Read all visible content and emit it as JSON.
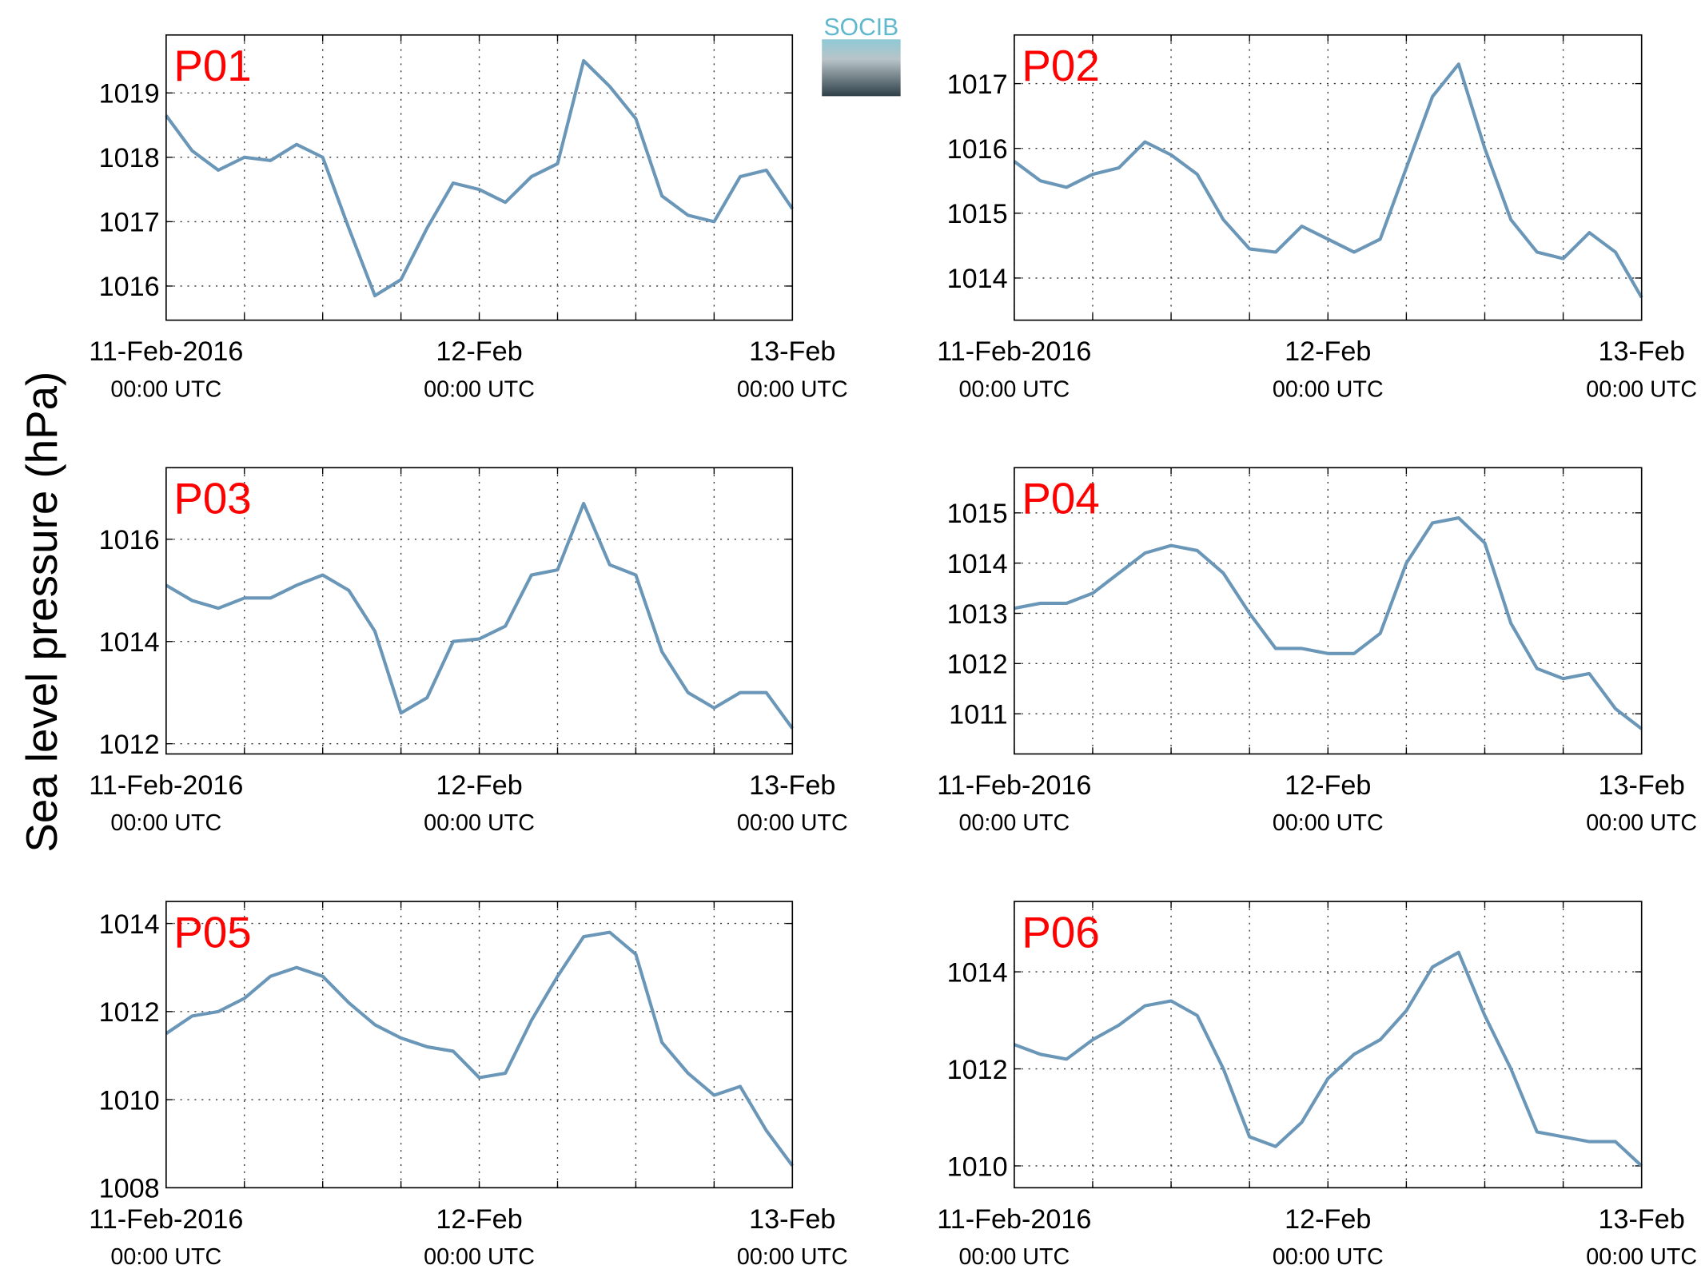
{
  "ylabel": "Sea level pressure (hPa)",
  "logo": "SOCIB",
  "chart_data": [
    {
      "type": "line",
      "title": "P01",
      "color": "#6a96b8",
      "grid": true,
      "x": [
        0,
        2,
        4,
        6,
        8,
        10,
        12,
        14,
        16,
        18,
        20,
        22,
        24,
        26,
        28,
        30,
        32,
        34,
        36,
        38,
        40,
        42,
        44,
        46,
        48
      ],
      "values": [
        1018.65,
        1018.1,
        1017.8,
        1018.0,
        1017.95,
        1018.2,
        1018.0,
        1016.9,
        1015.85,
        1016.1,
        1016.9,
        1017.6,
        1017.5,
        1017.3,
        1017.7,
        1017.9,
        1019.5,
        1019.1,
        1018.6,
        1017.4,
        1017.1,
        1017.0,
        1017.7,
        1017.8,
        1017.2
      ],
      "xlim": [
        0,
        48
      ],
      "xticks": [
        {
          "value": 0,
          "label": "11-Feb-2016"
        },
        {
          "value": 24,
          "label": "12-Feb"
        },
        {
          "value": 48,
          "label": "13-Feb"
        }
      ],
      "xtick_sublabel": "00:00 UTC",
      "xminor": [
        6,
        12,
        18,
        30,
        36,
        42
      ],
      "ylim": [
        1015.47,
        1019.9
      ],
      "yticks": [
        1016,
        1017,
        1018,
        1019
      ]
    },
    {
      "type": "line",
      "title": "P02",
      "color": "#6a96b8",
      "grid": true,
      "x": [
        0,
        2,
        4,
        6,
        8,
        10,
        12,
        14,
        16,
        18,
        20,
        22,
        24,
        26,
        28,
        30,
        32,
        34,
        36,
        38,
        40,
        42,
        44,
        46,
        48
      ],
      "values": [
        1015.8,
        1015.5,
        1015.4,
        1015.6,
        1015.7,
        1016.1,
        1015.9,
        1015.6,
        1014.9,
        1014.45,
        1014.4,
        1014.8,
        1014.6,
        1014.4,
        1014.6,
        1015.7,
        1016.8,
        1017.3,
        1016.0,
        1014.9,
        1014.4,
        1014.3,
        1014.7,
        1014.4,
        1013.7
      ],
      "xlim": [
        0,
        48
      ],
      "xticks": [
        {
          "value": 0,
          "label": "11-Feb-2016"
        },
        {
          "value": 24,
          "label": "12-Feb"
        },
        {
          "value": 48,
          "label": "13-Feb"
        }
      ],
      "xtick_sublabel": "00:00 UTC",
      "xminor": [
        6,
        12,
        18,
        30,
        36,
        42
      ],
      "ylim": [
        1013.35,
        1017.75
      ],
      "yticks": [
        1014,
        1015,
        1016,
        1017
      ]
    },
    {
      "type": "line",
      "title": "P03",
      "color": "#6a96b8",
      "grid": true,
      "x": [
        0,
        2,
        4,
        6,
        8,
        10,
        12,
        14,
        16,
        18,
        20,
        22,
        24,
        26,
        28,
        30,
        32,
        34,
        36,
        38,
        40,
        42,
        44,
        46,
        48
      ],
      "values": [
        1015.1,
        1014.8,
        1014.65,
        1014.85,
        1014.85,
        1015.1,
        1015.3,
        1015.0,
        1014.2,
        1012.6,
        1012.9,
        1014.0,
        1014.05,
        1014.3,
        1015.3,
        1015.4,
        1016.7,
        1015.5,
        1015.3,
        1013.8,
        1013.0,
        1012.7,
        1013.0,
        1013.0,
        1012.3
      ],
      "xlim": [
        0,
        48
      ],
      "xticks": [
        {
          "value": 0,
          "label": "11-Feb-2016"
        },
        {
          "value": 24,
          "label": "12-Feb"
        },
        {
          "value": 48,
          "label": "13-Feb"
        }
      ],
      "xtick_sublabel": "00:00 UTC",
      "xminor": [
        6,
        12,
        18,
        30,
        36,
        42
      ],
      "ylim": [
        1011.8,
        1017.4
      ],
      "yticks": [
        1012,
        1014,
        1016
      ]
    },
    {
      "type": "line",
      "title": "P04",
      "color": "#6a96b8",
      "grid": true,
      "x": [
        0,
        2,
        4,
        6,
        8,
        10,
        12,
        14,
        16,
        18,
        20,
        22,
        24,
        26,
        28,
        30,
        32,
        34,
        36,
        38,
        40,
        42,
        44,
        46,
        48
      ],
      "values": [
        1013.1,
        1013.2,
        1013.2,
        1013.4,
        1013.8,
        1014.2,
        1014.35,
        1014.25,
        1013.8,
        1013.0,
        1012.3,
        1012.3,
        1012.2,
        1012.2,
        1012.6,
        1014.0,
        1014.8,
        1014.9,
        1014.4,
        1012.8,
        1011.9,
        1011.7,
        1011.8,
        1011.1,
        1010.7
      ],
      "xlim": [
        0,
        48
      ],
      "xticks": [
        {
          "value": 0,
          "label": "11-Feb-2016"
        },
        {
          "value": 24,
          "label": "12-Feb"
        },
        {
          "value": 48,
          "label": "13-Feb"
        }
      ],
      "xtick_sublabel": "00:00 UTC",
      "xminor": [
        6,
        12,
        18,
        30,
        36,
        42
      ],
      "ylim": [
        1010.2,
        1015.9
      ],
      "yticks": [
        1011,
        1012,
        1013,
        1014,
        1015
      ]
    },
    {
      "type": "line",
      "title": "P05",
      "color": "#6a96b8",
      "grid": true,
      "x": [
        0,
        2,
        4,
        6,
        8,
        10,
        12,
        14,
        16,
        18,
        20,
        22,
        24,
        26,
        28,
        30,
        32,
        34,
        36,
        38,
        40,
        42,
        44,
        46,
        48
      ],
      "values": [
        1011.5,
        1011.9,
        1012.0,
        1012.3,
        1012.8,
        1013.0,
        1012.8,
        1012.2,
        1011.7,
        1011.4,
        1011.2,
        1011.1,
        1010.5,
        1010.6,
        1011.8,
        1012.8,
        1013.7,
        1013.8,
        1013.3,
        1011.3,
        1010.6,
        1010.1,
        1010.3,
        1009.3,
        1008.5
      ],
      "xlim": [
        0,
        48
      ],
      "xticks": [
        {
          "value": 0,
          "label": "11-Feb-2016"
        },
        {
          "value": 24,
          "label": "12-Feb"
        },
        {
          "value": 48,
          "label": "13-Feb"
        }
      ],
      "xtick_sublabel": "00:00 UTC",
      "xminor": [
        6,
        12,
        18,
        30,
        36,
        42
      ],
      "ylim": [
        1008,
        1014.5
      ],
      "yticks": [
        1008,
        1010,
        1012,
        1014
      ]
    },
    {
      "type": "line",
      "title": "P06",
      "color": "#6a96b8",
      "grid": true,
      "x": [
        0,
        2,
        4,
        6,
        8,
        10,
        12,
        14,
        16,
        18,
        20,
        22,
        24,
        26,
        28,
        30,
        32,
        34,
        36,
        38,
        40,
        42,
        44,
        46,
        48
      ],
      "values": [
        1012.5,
        1012.3,
        1012.2,
        1012.6,
        1012.9,
        1013.3,
        1013.4,
        1013.1,
        1012.0,
        1010.6,
        1010.4,
        1010.9,
        1011.8,
        1012.3,
        1012.6,
        1013.2,
        1014.1,
        1014.4,
        1013.1,
        1012.0,
        1010.7,
        1010.6,
        1010.5,
        1010.5,
        1010.0
      ],
      "xlim": [
        0,
        48
      ],
      "xticks": [
        {
          "value": 0,
          "label": "11-Feb-2016"
        },
        {
          "value": 24,
          "label": "12-Feb"
        },
        {
          "value": 48,
          "label": "13-Feb"
        }
      ],
      "xtick_sublabel": "00:00 UTC",
      "xminor": [
        6,
        12,
        18,
        30,
        36,
        42
      ],
      "ylim": [
        1009.55,
        1015.45
      ],
      "yticks": [
        1010,
        1012,
        1014
      ]
    }
  ]
}
